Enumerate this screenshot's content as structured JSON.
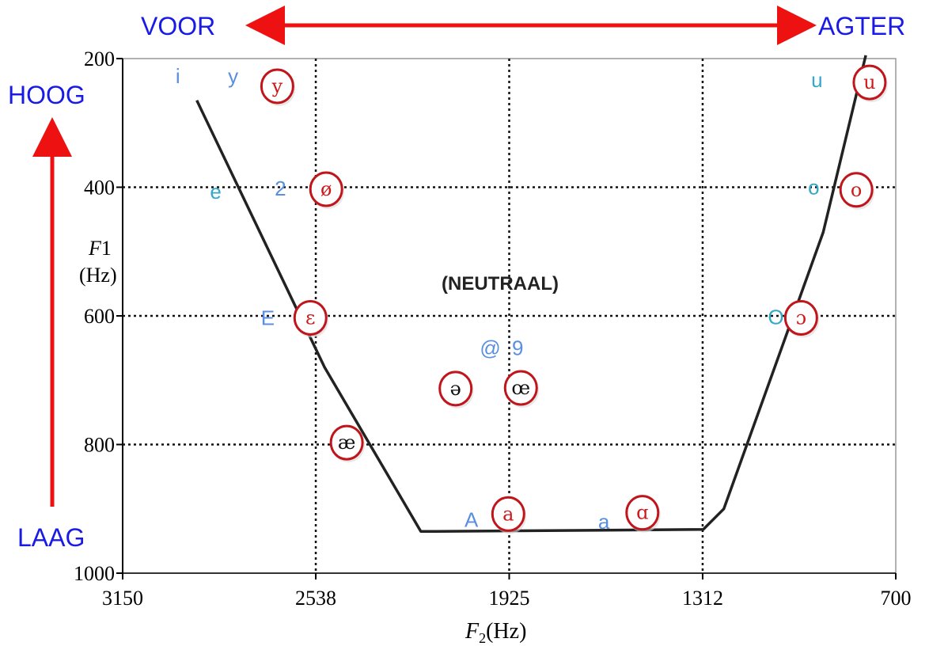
{
  "header": {
    "front_label": "VOOR",
    "back_label": "AGTER",
    "high_label": "HOOG",
    "low_label": "LAAG",
    "center_label": "(NEUTRAAL)"
  },
  "chart_data": {
    "type": "scatter",
    "title": "",
    "xlabel_main": "F",
    "xlabel_sub": "2",
    "xlabel_unit": "(Hz)",
    "ylabel_main": "F",
    "ylabel_sub": "1",
    "ylabel_unit": "(Hz)",
    "x_reversed": true,
    "y_reversed": true,
    "xlim": [
      3150,
      700
    ],
    "ylim": [
      200,
      1000
    ],
    "x_ticks": [
      "3150",
      "2538",
      "1925",
      "1312",
      "700"
    ],
    "y_ticks": [
      "200",
      "400",
      "600",
      "800",
      "1000"
    ],
    "grid_x": [
      2538,
      1925,
      1312
    ],
    "grid_y": [
      400,
      600,
      800
    ],
    "colors": {
      "header_text": "#1a1ae6",
      "arrow": "#ee1111",
      "circle": "#c0161b",
      "sampa_text": "#5a8fe0",
      "sampa_text_alt": "#35a8c8",
      "ipa_red": "#cc1a1a",
      "ipa_black": "#111111",
      "curve": "#222222"
    },
    "trapezoid_curve": [
      {
        "x": 2915,
        "y": 265
      },
      {
        "x": 2510,
        "y": 680
      },
      {
        "x": 2205,
        "y": 935
      },
      {
        "x": 2160,
        "y": 935
      },
      {
        "x": 1310,
        "y": 932
      },
      {
        "x": 1245,
        "y": 900
      },
      {
        "x": 930,
        "y": 470
      },
      {
        "x": 795,
        "y": 195
      }
    ],
    "circled_vowels": [
      {
        "symbol": "y",
        "x": 2660,
        "y": 243,
        "color": "red"
      },
      {
        "symbol": "ø",
        "x": 2505,
        "y": 403,
        "color": "red"
      },
      {
        "symbol": "ɛ",
        "x": 2555,
        "y": 603,
        "color": "red"
      },
      {
        "symbol": "æ",
        "x": 2440,
        "y": 797,
        "color": "black"
      },
      {
        "symbol": "ə",
        "x": 2095,
        "y": 713,
        "color": "black"
      },
      {
        "symbol": "œ",
        "x": 1888,
        "y": 712,
        "color": "black"
      },
      {
        "symbol": "a",
        "x": 1928,
        "y": 908,
        "color": "red"
      },
      {
        "symbol": "ɑ",
        "x": 1503,
        "y": 906,
        "color": "red"
      },
      {
        "symbol": "ɔ",
        "x": 1000,
        "y": 603,
        "color": "red"
      },
      {
        "symbol": "o",
        "x": 825,
        "y": 404,
        "color": "red"
      },
      {
        "symbol": "u",
        "x": 783,
        "y": 237,
        "color": "red"
      }
    ],
    "sampa_labels": [
      {
        "text": "i",
        "x": 2975,
        "y": 227,
        "color": "blue"
      },
      {
        "text": "y",
        "x": 2800,
        "y": 227,
        "color": "blue"
      },
      {
        "text": "e",
        "x": 2855,
        "y": 407,
        "color": "cyan"
      },
      {
        "text": "2",
        "x": 2650,
        "y": 402,
        "color": "blue"
      },
      {
        "text": "E",
        "x": 2690,
        "y": 603,
        "color": "blue"
      },
      {
        "text": "@",
        "x": 1985,
        "y": 650,
        "color": "blue"
      },
      {
        "text": "9",
        "x": 1898,
        "y": 650,
        "color": "blue"
      },
      {
        "text": "A",
        "x": 2045,
        "y": 917,
        "color": "blue"
      },
      {
        "text": "a",
        "x": 1625,
        "y": 920,
        "color": "blue"
      },
      {
        "text": "u",
        "x": 950,
        "y": 233,
        "color": "cyan"
      },
      {
        "text": "o",
        "x": 960,
        "y": 400,
        "color": "cyan"
      },
      {
        "text": "O",
        "x": 1080,
        "y": 602,
        "color": "cyan"
      }
    ]
  }
}
